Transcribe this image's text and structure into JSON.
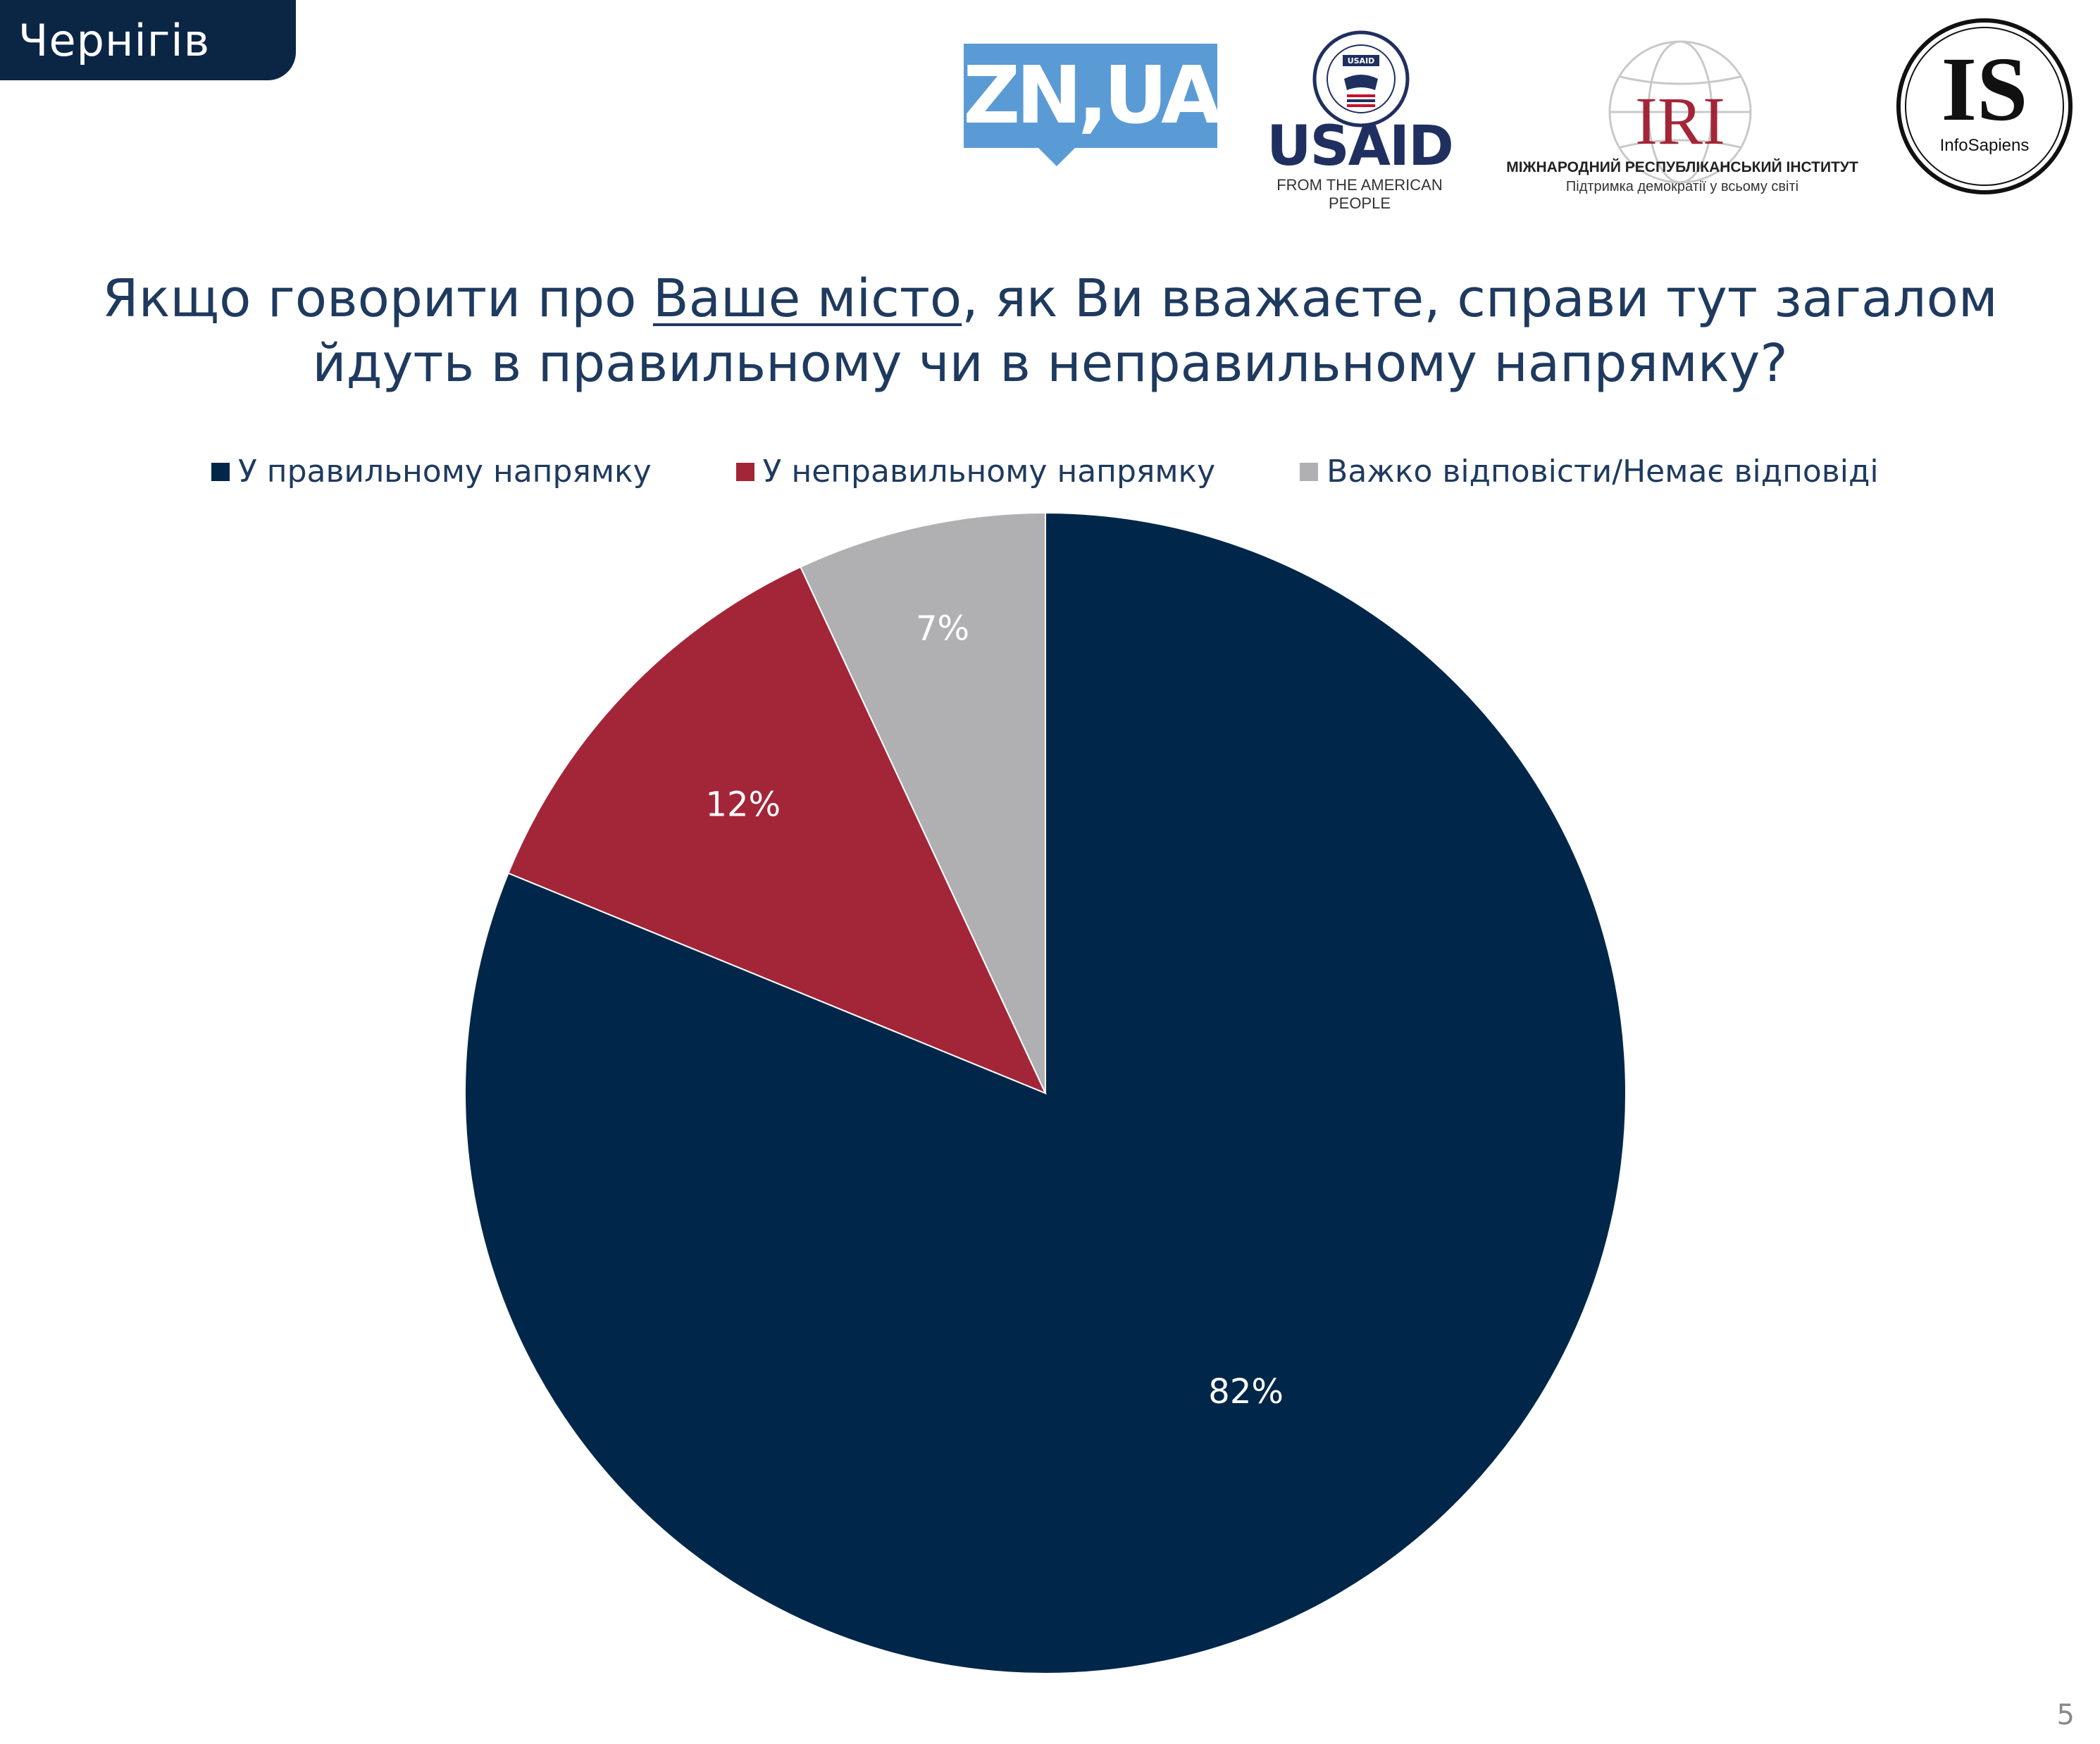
{
  "region": "Чернігів",
  "logos": {
    "zn": "ZN,UA",
    "usaid_seal_text": "USAID",
    "usaid": "USAID",
    "usaid_sub": "FROM THE AMERICAN PEOPLE",
    "iri": "IRI",
    "iri_name": "МІЖНАРОДНИЙ РЕСПУБЛІКАНСЬКИЙ ІНСТИТУТ",
    "iri_tagline": "Підтримка демократії у всьому світі",
    "is": "IS",
    "is_name": "InfoSapiens"
  },
  "title": {
    "line1_pre": "Якщо говорити про ",
    "line1_underlined": "Ваше місто",
    "line1_post": ", як Ви вважаєте, справи тут загалом",
    "line2": "йдуть в правильному чи в неправильному напрямку?"
  },
  "colors": {
    "navy": "#002749",
    "red": "#a32638",
    "gray": "#b0b0b2",
    "title": "#1f3a5f"
  },
  "chart_data": {
    "type": "pie",
    "categories": [
      "У правильному напрямку",
      "У неправильному напрямку",
      "Важко відповісти/Немає відповіді"
    ],
    "values": [
      82,
      12,
      7
    ],
    "labels": [
      "82%",
      "12%",
      "7%"
    ],
    "colors": [
      "#002749",
      "#a32638",
      "#b0b0b2"
    ],
    "legend_position": "top",
    "start_angle": "12 o'clock",
    "direction": "clockwise"
  },
  "page_number": "5"
}
